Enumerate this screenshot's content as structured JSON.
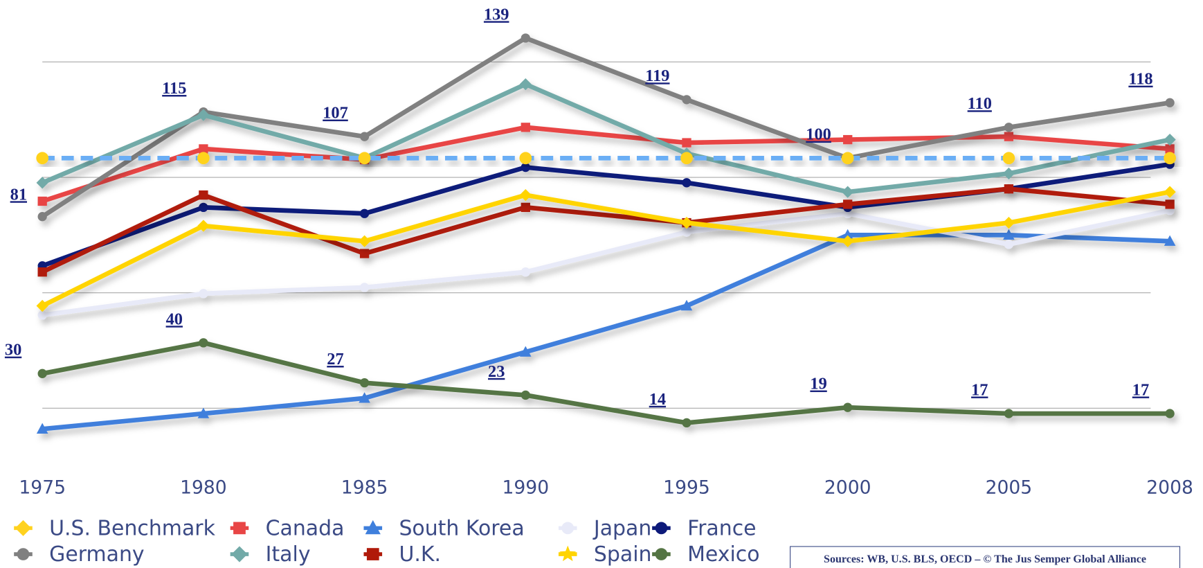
{
  "chart_data": {
    "type": "line",
    "categories": [
      "1975",
      "1980",
      "1985",
      "1990",
      "1995",
      "2000",
      "2005",
      "2008"
    ],
    "ylim": [
      0,
      150
    ],
    "yticks": [
      18.75,
      56.25,
      93.75,
      131.25
    ],
    "grid": true,
    "series": [
      {
        "name": "U.S. Benchmark",
        "color": "#6aaef5",
        "marker_color": "#ffd21f",
        "marker": "diamond",
        "dashed": true,
        "values": [
          100,
          100,
          100,
          100,
          100,
          100,
          100,
          100
        ]
      },
      {
        "name": "Canada",
        "color": "#e84545",
        "marker": "square",
        "values": [
          86,
          103,
          99.5,
          110,
          105,
          106,
          107,
          103
        ]
      },
      {
        "name": "South Korea",
        "color": "#3f7fdc",
        "marker": "triangle",
        "values": [
          12,
          17,
          22,
          37,
          52,
          75,
          75,
          73
        ]
      },
      {
        "name": "Japan",
        "color": "#e8eaf8",
        "marker": "circle",
        "values": [
          49,
          56,
          58,
          63,
          76,
          82,
          72,
          83
        ]
      },
      {
        "name": "France",
        "color": "#0d1a7a",
        "marker": "circle",
        "values": [
          65,
          84,
          82,
          97,
          92,
          84,
          90,
          98
        ]
      },
      {
        "name": "Germany",
        "color": "#808080",
        "marker": "circle",
        "show_labels": true,
        "values": [
          81,
          115,
          107,
          139,
          119,
          100,
          110,
          118
        ]
      },
      {
        "name": "Italy",
        "color": "#72aaa8",
        "marker": "diamond",
        "values": [
          92,
          114,
          100,
          124,
          101.5,
          89,
          95,
          106
        ]
      },
      {
        "name": "U.K.",
        "color": "#b01a0a",
        "marker": "square",
        "values": [
          63,
          88,
          69,
          84,
          79,
          85,
          90,
          85
        ]
      },
      {
        "name": "Spain",
        "color": "#ffd400",
        "marker": "star",
        "values": [
          52,
          78,
          73,
          88,
          79,
          73,
          79,
          89
        ]
      },
      {
        "name": "Mexico",
        "color": "#557544",
        "marker": "circle",
        "show_labels": true,
        "values": [
          30,
          40,
          27,
          23,
          14,
          19,
          17,
          17
        ]
      }
    ],
    "source": "Sources: WB, U.S. BLS, OECD – © The Jus Semper Global Alliance"
  }
}
